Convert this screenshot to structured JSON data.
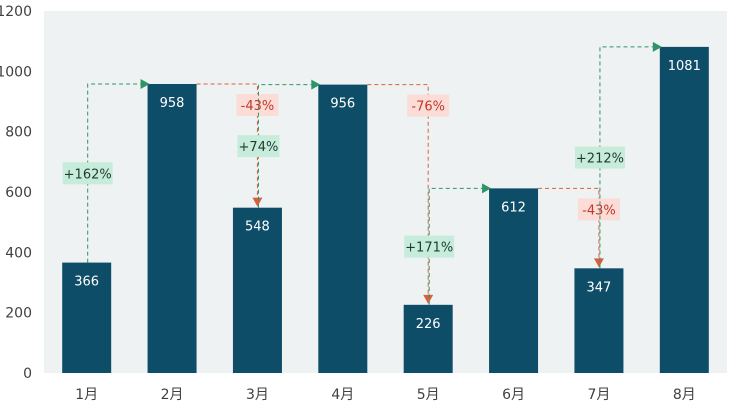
{
  "chart_data": {
    "type": "bar",
    "categories": [
      "1月",
      "2月",
      "3月",
      "4月",
      "5月",
      "6月",
      "7月",
      "8月"
    ],
    "values": [
      366,
      958,
      548,
      956,
      226,
      612,
      347,
      1081
    ],
    "value_labels": [
      "366",
      "958",
      "548",
      "956",
      "226",
      "612",
      "347",
      "1081"
    ],
    "changes": [
      {
        "from": 0,
        "to": 1,
        "label": "+162%",
        "direction": "up"
      },
      {
        "from": 1,
        "to": 2,
        "label": "-43%",
        "direction": "down"
      },
      {
        "from": 2,
        "to": 3,
        "label": "+74%",
        "direction": "up"
      },
      {
        "from": 3,
        "to": 4,
        "label": "-76%",
        "direction": "down"
      },
      {
        "from": 4,
        "to": 5,
        "label": "+171%",
        "direction": "up"
      },
      {
        "from": 5,
        "to": 6,
        "label": "-43%",
        "direction": "down"
      },
      {
        "from": 6,
        "to": 7,
        "label": "+212%",
        "direction": "up"
      }
    ],
    "ylim": [
      0,
      1200
    ],
    "yticks": [
      0,
      200,
      400,
      600,
      800,
      1000,
      1200
    ],
    "title": "",
    "xlabel": "",
    "ylabel": "",
    "grid": false,
    "legend": "none",
    "colors": {
      "bar": "#0e4d68",
      "plot_bg": "#eef2f2",
      "up_arrow": "#2e9468",
      "up_box": "#c7ecdc",
      "up_text": "#1f3b2f",
      "down_arrow": "#d9603d",
      "down_box": "#fbdcd7",
      "down_text": "#c0392b"
    }
  }
}
